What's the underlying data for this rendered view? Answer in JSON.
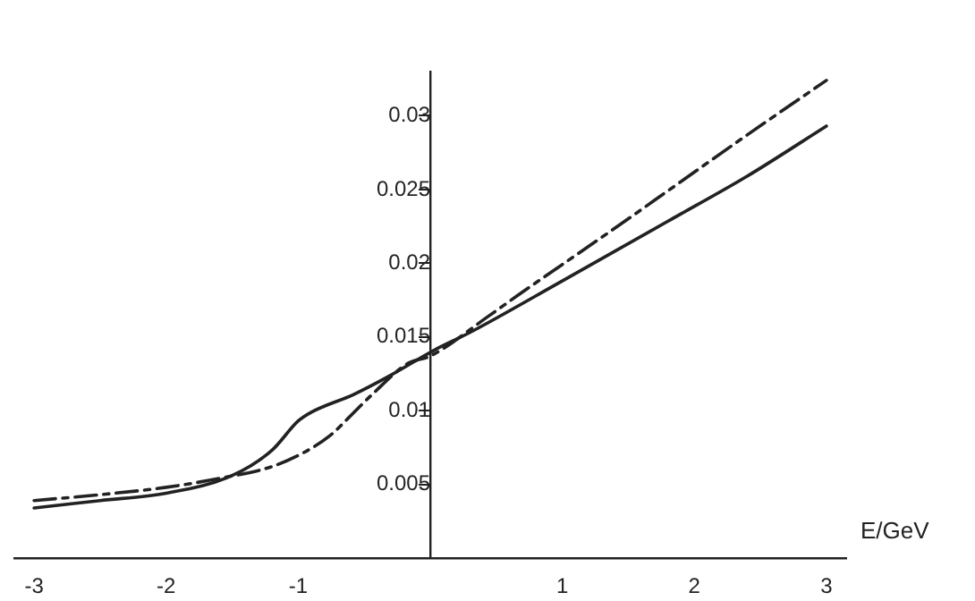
{
  "chart_data": {
    "type": "line",
    "xlabel": "E/GeV",
    "xlim": [
      -3.15,
      3.15
    ],
    "ylim": [
      0,
      0.033
    ],
    "xticks": [
      -3,
      -2,
      -1,
      1,
      2,
      3
    ],
    "yticks": [
      0.005,
      0.01,
      0.015,
      0.02,
      0.025,
      0.03
    ],
    "grid": false,
    "legend": false,
    "marker": "none",
    "series": [
      {
        "color": "#222222",
        "line_style": "solid",
        "x": [
          -3,
          -2.5,
          -2,
          -1.5,
          -1.2,
          -1,
          -0.9,
          -0.58,
          -0.3,
          0.03,
          0.3,
          1,
          1.83,
          2.4,
          3
        ],
        "values": [
          0.0034,
          0.0039,
          0.0044,
          0.0056,
          0.0073,
          0.0093,
          0.0099,
          0.0111,
          0.0124,
          0.0141,
          0.0153,
          0.0188,
          0.023,
          0.0259,
          0.0293
        ]
      },
      {
        "color": "#222222",
        "line_style": "dashed",
        "x": [
          -3,
          -2.5,
          -2,
          -1.6,
          -1.2,
          -0.97,
          -0.76,
          -0.62,
          -0.44,
          -0.17,
          0,
          0.44,
          0.66,
          1.45,
          1.83,
          2.4,
          3
        ],
        "values": [
          0.0039,
          0.0043,
          0.0048,
          0.0054,
          0.0062,
          0.0071,
          0.0083,
          0.0095,
          0.0111,
          0.0132,
          0.0137,
          0.0164,
          0.0178,
          0.0227,
          0.0251,
          0.0287,
          0.0324
        ]
      }
    ]
  }
}
